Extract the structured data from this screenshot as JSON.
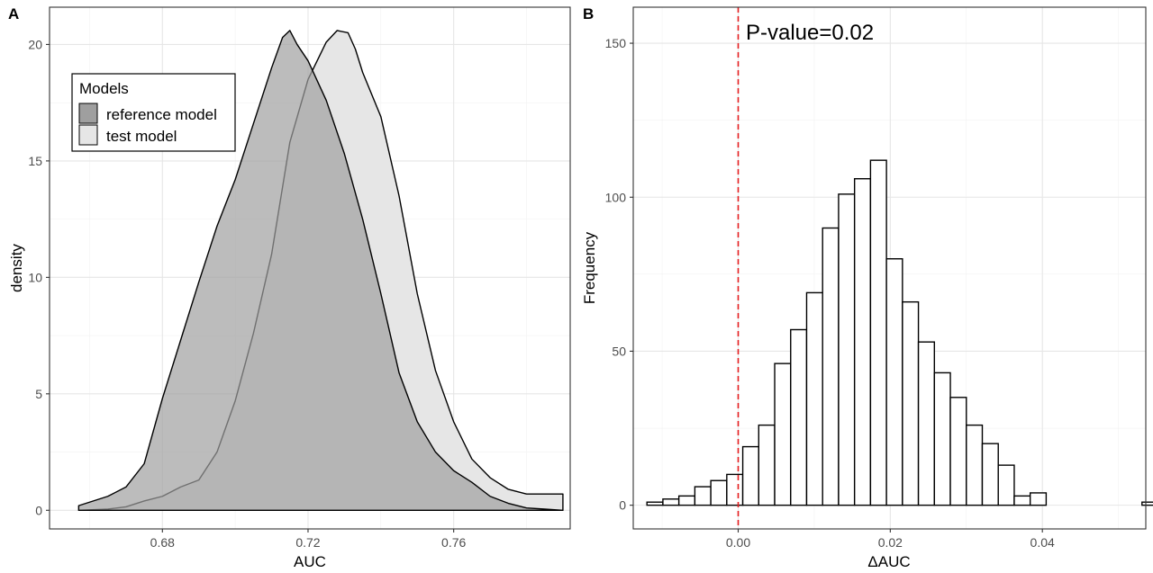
{
  "chart_data": [
    {
      "panel": "A",
      "type": "area",
      "xlabel": "AUC",
      "ylabel": "density",
      "xlim": [
        0.649,
        0.792
      ],
      "ylim": [
        -0.8,
        21.6
      ],
      "xticks": [
        0.68,
        0.72,
        0.76
      ],
      "xtick_labels": [
        "0.68",
        "0.72",
        "0.76"
      ],
      "yticks": [
        0,
        5,
        10,
        15,
        20
      ],
      "ytick_labels": [
        "0",
        "5",
        "10",
        "15",
        "20"
      ],
      "grid": true,
      "legend": {
        "title": "Models",
        "position": "top-left"
      },
      "series": [
        {
          "name": "reference model",
          "color": "#9f9f9f",
          "x": [
            0.657,
            0.665,
            0.67,
            0.675,
            0.68,
            0.685,
            0.69,
            0.695,
            0.7,
            0.705,
            0.71,
            0.713,
            0.715,
            0.717,
            0.72,
            0.725,
            0.73,
            0.735,
            0.74,
            0.745,
            0.75,
            0.755,
            0.76,
            0.765,
            0.77,
            0.775,
            0.78,
            0.785,
            0.79
          ],
          "y": [
            0.2,
            0.6,
            1.0,
            2.0,
            4.8,
            7.3,
            9.8,
            12.2,
            14.2,
            16.6,
            19.0,
            20.3,
            20.6,
            20.0,
            19.3,
            17.6,
            15.3,
            12.5,
            9.3,
            5.9,
            3.8,
            2.5,
            1.7,
            1.2,
            0.6,
            0.3,
            0.1,
            0.05,
            0.0
          ]
        },
        {
          "name": "test model",
          "color": "#e6e6e6",
          "x": [
            0.657,
            0.665,
            0.67,
            0.675,
            0.68,
            0.685,
            0.69,
            0.695,
            0.7,
            0.705,
            0.71,
            0.715,
            0.72,
            0.725,
            0.728,
            0.731,
            0.733,
            0.735,
            0.74,
            0.745,
            0.75,
            0.755,
            0.76,
            0.765,
            0.77,
            0.775,
            0.78,
            0.785,
            0.79
          ],
          "y": [
            0.0,
            0.05,
            0.15,
            0.4,
            0.6,
            1.0,
            1.3,
            2.5,
            4.7,
            7.6,
            11.0,
            15.8,
            18.5,
            20.1,
            20.6,
            20.5,
            19.8,
            18.8,
            16.9,
            13.5,
            9.3,
            6.0,
            3.8,
            2.2,
            1.4,
            0.9,
            0.7,
            0.7,
            0.7
          ]
        }
      ]
    },
    {
      "panel": "B",
      "type": "bar",
      "xlabel": "ΔAUC",
      "ylabel": "Frequency",
      "xlim": [
        -0.0138,
        0.0536
      ],
      "ylim": [
        -7.7,
        161.7
      ],
      "xticks": [
        0.0,
        0.02,
        0.04
      ],
      "xtick_labels": [
        "0.00",
        "0.02",
        "0.04"
      ],
      "yticks": [
        0,
        50,
        100,
        150
      ],
      "ytick_labels": [
        "0",
        "50",
        "100",
        "150"
      ],
      "grid": true,
      "bin_width": 0.0021,
      "bin_start": -0.012,
      "counts": [
        1,
        2,
        3,
        6,
        8,
        10,
        19,
        26,
        46,
        57,
        69,
        90,
        101,
        106,
        112,
        80,
        66,
        53,
        43,
        35,
        26,
        20,
        13,
        3,
        4,
        0,
        0,
        0,
        0,
        0,
        0,
        1
      ],
      "reference_line": {
        "x": 0.0,
        "color": "#e41a1c",
        "style": "dashed"
      },
      "annotation": "P-value=0.02"
    }
  ]
}
